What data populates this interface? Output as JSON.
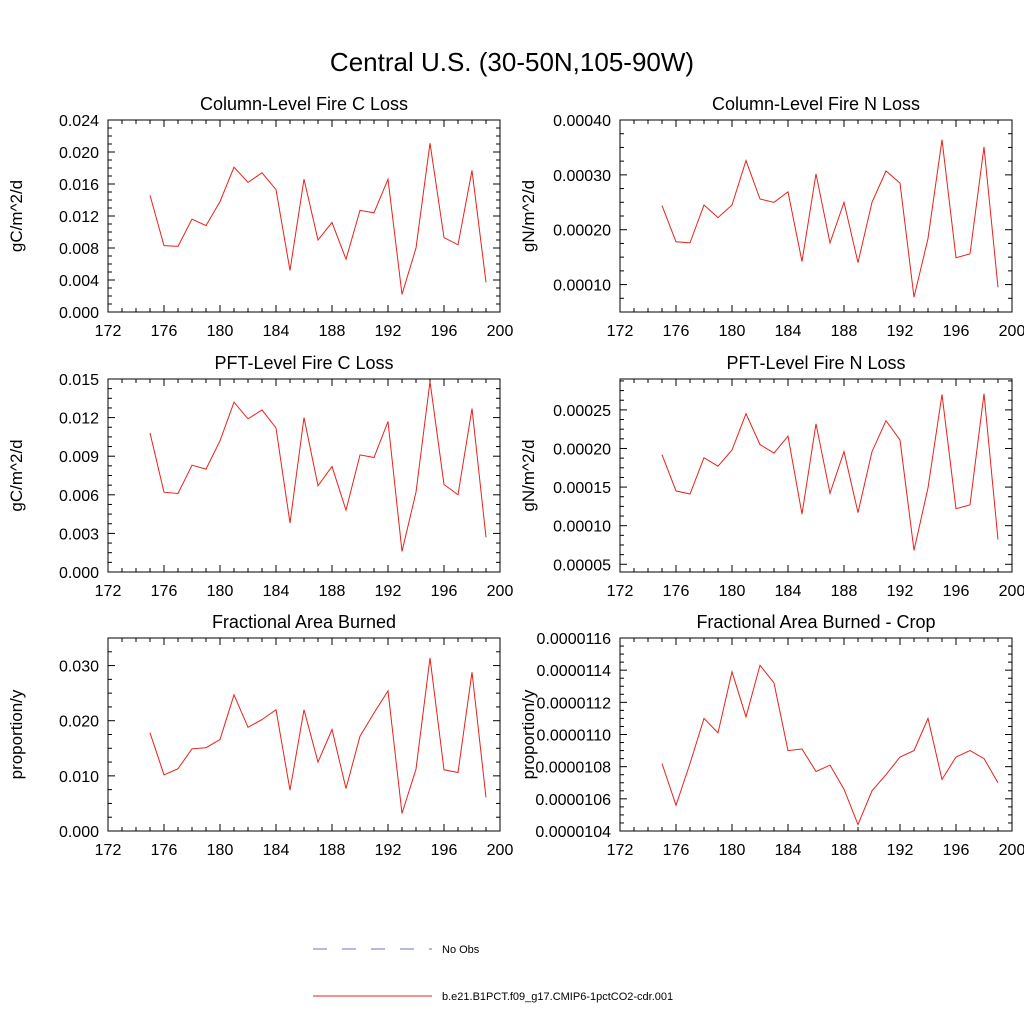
{
  "title": "Central U.S. (30-50N,105-90W)",
  "legend": [
    {
      "label": "No Obs",
      "color": "#6f74b8",
      "dash": true
    },
    {
      "label": "b.e21.B1PCT.f09_g17.CMIP6-1pctCO2-cdr.001",
      "color": "#e8211b",
      "dash": false
    }
  ],
  "chart_data": [
    {
      "type": "line",
      "title": "Column-Level Fire C Loss",
      "ylabel": "gC/m^2/d",
      "xlim": [
        172,
        200
      ],
      "ylim": [
        0,
        0.024
      ],
      "xticks": [
        "172",
        "176",
        "180",
        "184",
        "188",
        "192",
        "196",
        "200"
      ],
      "yticks": [
        "0.000",
        "0.004",
        "0.008",
        "0.012",
        "0.016",
        "0.020",
        "0.024"
      ],
      "series": [
        {
          "color": "#e8211b",
          "x": [
            175,
            176,
            177,
            178,
            179,
            180,
            181,
            182,
            183,
            184,
            185,
            186,
            187,
            188,
            189,
            190,
            191,
            192,
            193,
            194,
            195,
            196,
            197,
            198,
            199
          ],
          "values": [
            0.0146,
            0.0083,
            0.0082,
            0.0116,
            0.0108,
            0.0138,
            0.0181,
            0.0162,
            0.0174,
            0.0153,
            0.0052,
            0.0166,
            0.009,
            0.0112,
            0.0066,
            0.0127,
            0.0124,
            0.0166,
            0.0022,
            0.008,
            0.0211,
            0.0093,
            0.0084,
            0.0177,
            0.0037
          ]
        }
      ]
    },
    {
      "type": "line",
      "title": "Column-Level Fire N Loss",
      "ylabel": "gN/m^2/d",
      "xlim": [
        172,
        200
      ],
      "ylim": [
        5e-05,
        0.0004
      ],
      "xticks": [
        "172",
        "176",
        "180",
        "184",
        "188",
        "192",
        "196",
        "200"
      ],
      "yticks": [
        "0.00010",
        "0.00020",
        "0.00030",
        "0.00040"
      ],
      "series": [
        {
          "color": "#e8211b",
          "x": [
            175,
            176,
            177,
            178,
            179,
            180,
            181,
            182,
            183,
            184,
            185,
            186,
            187,
            188,
            189,
            190,
            191,
            192,
            193,
            194,
            195,
            196,
            197,
            198,
            199
          ],
          "values": [
            0.000244,
            0.000178,
            0.000176,
            0.000245,
            0.000222,
            0.000245,
            0.000326,
            0.000256,
            0.00025,
            0.000269,
            0.000142,
            0.000302,
            0.000176,
            0.00025,
            0.00014,
            0.00025,
            0.000307,
            0.000285,
            7.7e-05,
            0.000184,
            0.000364,
            0.000149,
            0.000156,
            0.000351,
            9.5e-05
          ]
        }
      ]
    },
    {
      "type": "line",
      "title": "PFT-Level Fire C Loss",
      "ylabel": "gC/m^2/d",
      "xlim": [
        172,
        200
      ],
      "ylim": [
        0,
        0.015
      ],
      "xticks": [
        "172",
        "176",
        "180",
        "184",
        "188",
        "192",
        "196",
        "200"
      ],
      "yticks": [
        "0.000",
        "0.003",
        "0.006",
        "0.009",
        "0.012",
        "0.015"
      ],
      "series": [
        {
          "color": "#e8211b",
          "x": [
            175,
            176,
            177,
            178,
            179,
            180,
            181,
            182,
            183,
            184,
            185,
            186,
            187,
            188,
            189,
            190,
            191,
            192,
            193,
            194,
            195,
            196,
            197,
            198,
            199
          ],
          "values": [
            0.0108,
            0.0062,
            0.0061,
            0.0083,
            0.008,
            0.0102,
            0.0132,
            0.0119,
            0.0126,
            0.0112,
            0.0038,
            0.012,
            0.0067,
            0.0082,
            0.0048,
            0.0091,
            0.0089,
            0.0117,
            0.0016,
            0.0062,
            0.0148,
            0.0068,
            0.006,
            0.0127,
            0.0027
          ]
        }
      ]
    },
    {
      "type": "line",
      "title": "PFT-Level Fire N Loss",
      "ylabel": "gN/m^2/d",
      "xlim": [
        172,
        200
      ],
      "ylim": [
        4e-05,
        0.00029
      ],
      "xticks": [
        "172",
        "176",
        "180",
        "184",
        "188",
        "192",
        "196",
        "200"
      ],
      "yticks": [
        "0.00005",
        "0.00010",
        "0.00015",
        "0.00020",
        "0.00025"
      ],
      "series": [
        {
          "color": "#e8211b",
          "x": [
            175,
            176,
            177,
            178,
            179,
            180,
            181,
            182,
            183,
            184,
            185,
            186,
            187,
            188,
            189,
            190,
            191,
            192,
            193,
            194,
            195,
            196,
            197,
            198,
            199
          ],
          "values": [
            0.000192,
            0.000145,
            0.000141,
            0.000188,
            0.000177,
            0.000198,
            0.000245,
            0.000205,
            0.000194,
            0.000216,
            0.000115,
            0.000232,
            0.000142,
            0.000196,
            0.000117,
            0.000196,
            0.000236,
            0.000211,
            6.8e-05,
            0.000149,
            0.00027,
            0.000122,
            0.000127,
            0.000271,
            8.2e-05
          ]
        }
      ]
    },
    {
      "type": "line",
      "title": "Fractional Area Burned",
      "ylabel": "proportion/y",
      "xlim": [
        172,
        200
      ],
      "ylim": [
        0,
        0.035
      ],
      "xticks": [
        "172",
        "176",
        "180",
        "184",
        "188",
        "192",
        "196",
        "200"
      ],
      "yticks": [
        "0.000",
        "0.010",
        "0.020",
        "0.030"
      ],
      "series": [
        {
          "color": "#e8211b",
          "x": [
            175,
            176,
            177,
            178,
            179,
            180,
            181,
            182,
            183,
            184,
            185,
            186,
            187,
            188,
            189,
            190,
            191,
            192,
            193,
            194,
            195,
            196,
            197,
            198,
            199
          ],
          "values": [
            0.0178,
            0.0102,
            0.0113,
            0.0149,
            0.0151,
            0.0166,
            0.0247,
            0.0188,
            0.0202,
            0.022,
            0.0074,
            0.022,
            0.0125,
            0.0184,
            0.0077,
            0.0172,
            0.0214,
            0.0254,
            0.0032,
            0.0112,
            0.0314,
            0.0111,
            0.0106,
            0.0288,
            0.0061
          ]
        }
      ]
    },
    {
      "type": "line",
      "title": "Fractional Area Burned - Crop",
      "ylabel": "proportion/y",
      "xlim": [
        172,
        200
      ],
      "ylim": [
        1.04e-05,
        1.16e-05
      ],
      "xticks": [
        "172",
        "176",
        "180",
        "184",
        "188",
        "192",
        "196",
        "200"
      ],
      "yticks": [
        "0.0000104",
        "0.0000106",
        "0.0000108",
        "0.0000110",
        "0.0000112",
        "0.0000114",
        "0.0000116"
      ],
      "series": [
        {
          "color": "#e8211b",
          "x": [
            175,
            176,
            177,
            178,
            179,
            180,
            181,
            182,
            183,
            184,
            185,
            186,
            187,
            188,
            189,
            190,
            191,
            192,
            193,
            194,
            195,
            196,
            197,
            198,
            199
          ],
          "values": [
            1.082e-05,
            1.056e-05,
            1.082e-05,
            1.11e-05,
            1.101e-05,
            1.139e-05,
            1.111e-05,
            1.143e-05,
            1.132e-05,
            1.09e-05,
            1.091e-05,
            1.077e-05,
            1.081e-05,
            1.066e-05,
            1.044e-05,
            1.065e-05,
            1.075e-05,
            1.086e-05,
            1.09e-05,
            1.11e-05,
            1.072e-05,
            1.086e-05,
            1.09e-05,
            1.085e-05,
            1.07e-05
          ]
        }
      ]
    }
  ]
}
